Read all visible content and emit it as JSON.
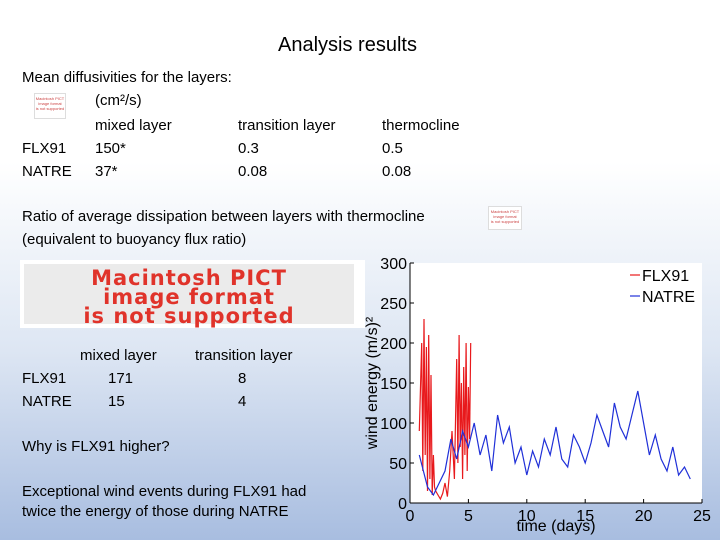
{
  "slide": {
    "title": "Analysis results",
    "diffusivity": {
      "heading": "Mean diffusivities for the layers:",
      "units": "(cm²/s)",
      "columns": [
        "mixed layer",
        "transition layer",
        "thermocline"
      ],
      "rows": [
        {
          "label": "FLX91",
          "values": [
            "150*",
            "0.3",
            "0.5"
          ]
        },
        {
          "label": "NATRE",
          "values": [
            "37*",
            "0.08",
            "0.08"
          ]
        }
      ]
    },
    "dissipation": {
      "line1": "Ratio of average dissipation between layers with thermocline",
      "line2": "(equivalent to buoyancy flux ratio)",
      "columns": [
        "mixed layer",
        "transition layer"
      ],
      "rows": [
        {
          "label": "FLX91",
          "values": [
            "171",
            "8"
          ]
        },
        {
          "label": "NATRE",
          "values": [
            "15",
            "4"
          ]
        }
      ]
    },
    "question": "Why is FLX91 higher?",
    "answer_line1": "Exceptional wind events during FLX91 had",
    "answer_line2": "twice the energy of those during NATRE",
    "pict_placeholder": {
      "line1": "Macintosh PICT",
      "line2": "image format",
      "line3": "is not supported"
    },
    "pict_small": {
      "line1": "Macintosh PICT",
      "line2": "image format",
      "line3": "is not supported"
    }
  },
  "chart_data": {
    "type": "line",
    "xlabel": "time (days)",
    "ylabel": "wind energy (m/s)²",
    "xlim": [
      0,
      25
    ],
    "ylim": [
      0,
      300
    ],
    "xticks": [
      0,
      5,
      10,
      15,
      20,
      25
    ],
    "yticks": [
      0,
      50,
      100,
      150,
      200,
      250,
      300
    ],
    "legend_position": "top-right",
    "grid": false,
    "series": [
      {
        "name": "FLX91",
        "color": "#e8191c",
        "x": [
          0.8,
          1.0,
          1.1,
          1.2,
          1.3,
          1.4,
          1.5,
          1.6,
          1.7,
          1.8,
          1.9,
          2.0,
          2.1,
          2.2,
          2.4,
          2.6,
          2.8,
          3.0,
          3.2,
          3.4,
          3.6,
          3.8,
          4.0,
          4.1,
          4.2,
          4.3,
          4.4,
          4.5,
          4.6,
          4.7,
          4.8,
          4.9,
          5.0,
          5.1,
          5.2
        ],
        "y": [
          90,
          200,
          40,
          230,
          60,
          195,
          15,
          210,
          30,
          160,
          10,
          60,
          20,
          15,
          10,
          5,
          12,
          25,
          8,
          40,
          90,
          30,
          180,
          50,
          210,
          70,
          150,
          30,
          170,
          60,
          200,
          40,
          145,
          80,
          200
        ]
      },
      {
        "name": "NATRE",
        "color": "#2030d8",
        "x": [
          0.8,
          1.5,
          2.0,
          2.5,
          3.0,
          3.5,
          4.0,
          4.5,
          5.0,
          5.5,
          6.0,
          6.5,
          7.0,
          7.5,
          8.0,
          8.5,
          9.0,
          9.5,
          10.0,
          10.5,
          11.0,
          11.5,
          12.0,
          12.5,
          13.0,
          13.5,
          14.0,
          14.5,
          15.0,
          15.5,
          16.0,
          16.5,
          17.0,
          17.5,
          18.0,
          18.5,
          19.0,
          19.5,
          20.0,
          20.5,
          21.0,
          21.5,
          22.0,
          22.5,
          23.0,
          23.5,
          24.0
        ],
        "y": [
          60,
          20,
          10,
          25,
          40,
          80,
          55,
          90,
          70,
          100,
          60,
          85,
          40,
          110,
          75,
          95,
          50,
          70,
          35,
          65,
          45,
          80,
          60,
          95,
          55,
          45,
          85,
          70,
          50,
          75,
          110,
          90,
          70,
          125,
          95,
          80,
          110,
          140,
          100,
          60,
          85,
          55,
          40,
          70,
          35,
          45,
          30
        ]
      }
    ]
  }
}
